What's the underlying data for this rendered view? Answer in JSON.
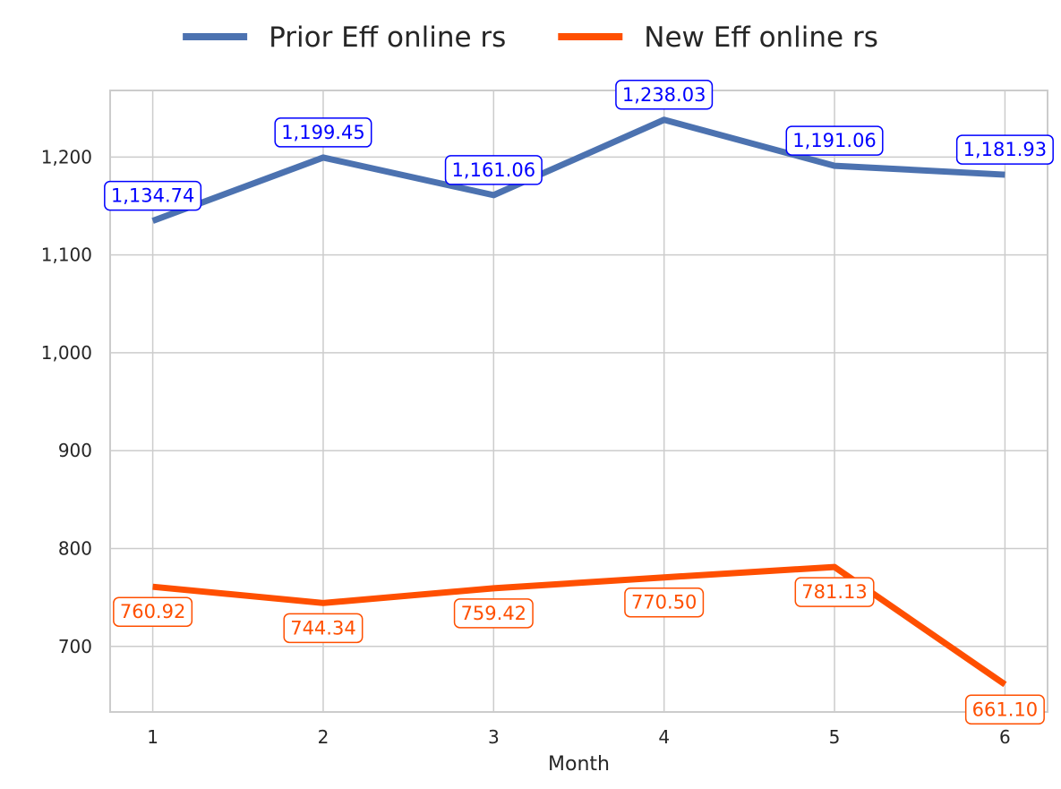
{
  "chart_data": {
    "type": "line",
    "title": "",
    "xlabel": "Month",
    "ylabel": "",
    "x": [
      1,
      2,
      3,
      4,
      5,
      6
    ],
    "xticks": [
      "1",
      "2",
      "3",
      "4",
      "5",
      "6"
    ],
    "xlim": [
      0.75,
      6.25
    ],
    "ylim": [
      633,
      1268
    ],
    "yticks": [
      700,
      800,
      900,
      1000,
      1100,
      1200
    ],
    "ytick_labels": [
      "700",
      "800",
      "900",
      "1,000",
      "1,100",
      "1,200"
    ],
    "grid": true,
    "legend_position": "top-center",
    "series": [
      {
        "name": "Prior Eff online rs",
        "color": "#4c72b0",
        "label_color": "#0000ff",
        "label_position": "above",
        "values": [
          1134.74,
          1199.45,
          1161.06,
          1238.03,
          1191.06,
          1181.93
        ],
        "labels": [
          "1,134.74",
          "1,199.45",
          "1,161.06",
          "1,238.03",
          "1,191.06",
          "1,181.93"
        ]
      },
      {
        "name": "New Eff online rs",
        "color": "#ff4f00",
        "label_color": "#ff4f00",
        "label_position": "below",
        "values": [
          760.92,
          744.34,
          759.42,
          770.5,
          781.13,
          661.1
        ],
        "labels": [
          "760.92",
          "744.34",
          "759.42",
          "770.50",
          "781.13",
          "661.10"
        ]
      }
    ]
  }
}
